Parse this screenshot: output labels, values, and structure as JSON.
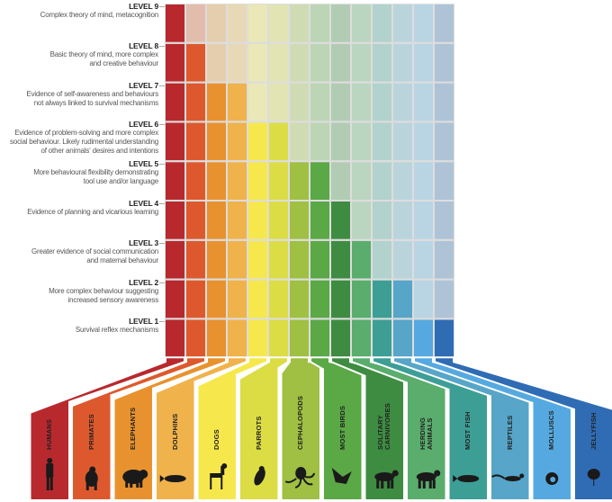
{
  "levels": [
    {
      "label": "LEVEL 9",
      "description": "Complex theory of mind, metacognition"
    },
    {
      "label": "LEVEL 8",
      "description": "Basic theory of mind, more complex\nand creative behaviour"
    },
    {
      "label": "LEVEL 7",
      "description": "Evidence of self-awareness and behaviours\nnot always linked to survival mechanisms"
    },
    {
      "label": "LEVEL 6",
      "description": "Evidence of problem-solving and more complex\nsocial behaviour. Likely rudimental understanding\nof other animals' desires and intentions"
    },
    {
      "label": "LEVEL 5",
      "description": "More behavioural flexibility demonstrating\ntool use and/or language"
    },
    {
      "label": "LEVEL 4",
      "description": "Evidence of planning and vicarious learning"
    },
    {
      "label": "LEVEL 3",
      "description": "Greater evidence of social communication\nand maternal behaviour"
    },
    {
      "label": "LEVEL 2",
      "description": "More complex behaviour suggesting\nincreased sensory awareness"
    },
    {
      "label": "LEVEL 1",
      "description": "Survival reflex mechanisms"
    }
  ],
  "animals": [
    {
      "name": "HUMANS",
      "max_level": 9,
      "color": "#b8292e",
      "icon": "human-icon"
    },
    {
      "name": "PRIMATES",
      "max_level": 8,
      "color": "#dd592d",
      "icon": "gorilla-icon"
    },
    {
      "name": "ELEPHANTS",
      "max_level": 7,
      "color": "#e8922f",
      "icon": "elephant-icon"
    },
    {
      "name": "DOLPHINS",
      "max_level": 7,
      "color": "#f0b24b",
      "icon": "dolphin-icon"
    },
    {
      "name": "DOGS",
      "max_level": 6,
      "color": "#f6e84c",
      "icon": "dog-icon"
    },
    {
      "name": "PARROTS",
      "max_level": 6,
      "color": "#dcdc45",
      "icon": "parrot-icon"
    },
    {
      "name": "CEPHALOPODS",
      "max_level": 5,
      "color": "#9fc042",
      "icon": "octopus-icon"
    },
    {
      "name": "MOST BIRDS",
      "max_level": 5,
      "color": "#5aa846",
      "icon": "bird-icon"
    },
    {
      "name": "SOLITARY\nCARNIVORES",
      "max_level": 4,
      "color": "#3e8c41",
      "icon": "tiger-icon"
    },
    {
      "name": "HERDING\nANIMALS",
      "max_level": 3,
      "color": "#5aad6d",
      "icon": "cow-icon"
    },
    {
      "name": "MOST FISH",
      "max_level": 2,
      "color": "#3d9e96",
      "icon": "fish-icon"
    },
    {
      "name": "REPTILES",
      "max_level": 2,
      "color": "#57a5c8",
      "icon": "lizard-icon"
    },
    {
      "name": "MOLLUSCS",
      "max_level": 1,
      "color": "#56a9e0",
      "icon": "snail-icon"
    },
    {
      "name": "JELLYFISH",
      "max_level": 1,
      "color": "#2f6cb4",
      "icon": "jellyfish-icon"
    }
  ]
}
